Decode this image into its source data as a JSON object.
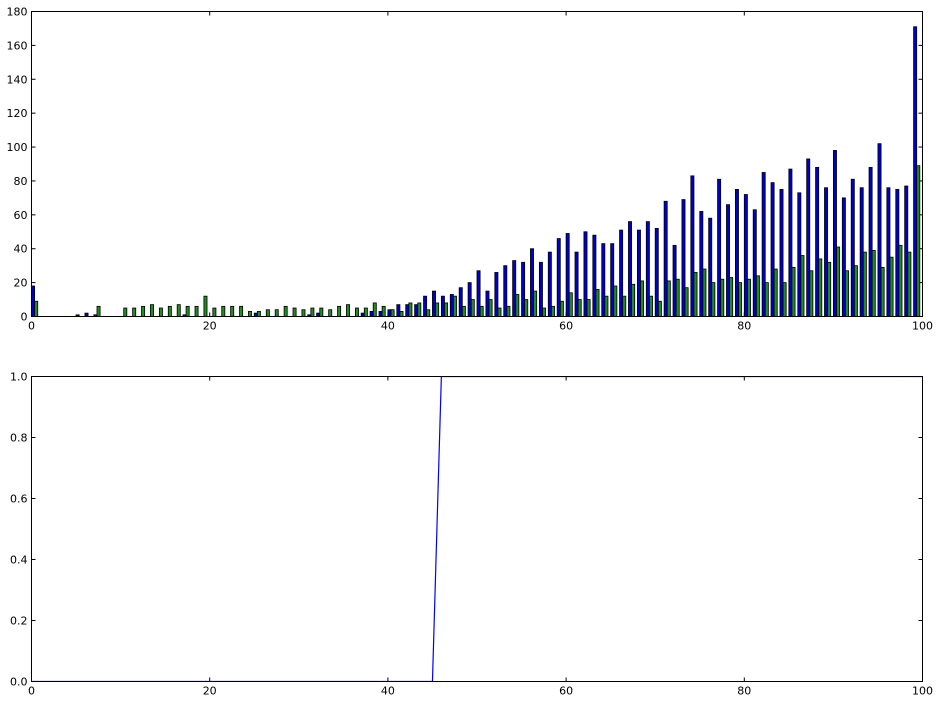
{
  "chart_data": [
    {
      "type": "bar",
      "title": "",
      "xlabel": "",
      "ylabel": "",
      "xlim": [
        0,
        100
      ],
      "ylim": [
        0,
        180
      ],
      "xticks": [
        "0",
        "20",
        "40",
        "60",
        "80",
        "100"
      ],
      "yticks": [
        "0",
        "20",
        "40",
        "60",
        "80",
        "100",
        "120",
        "140",
        "160",
        "180"
      ],
      "grid": false,
      "legend": "none",
      "colors": [
        "#0000cc",
        "#228b22"
      ],
      "series": [
        {
          "values": [
            18,
            0,
            0,
            0,
            0,
            1,
            2,
            1,
            0,
            0,
            0,
            0,
            0,
            0,
            0,
            0,
            0,
            1,
            0,
            0,
            0,
            0,
            0,
            0,
            0,
            2,
            0,
            0,
            0,
            0,
            0,
            1,
            2,
            0,
            0,
            0,
            0,
            2,
            3,
            3,
            4,
            7,
            7,
            7,
            12,
            15,
            12,
            13,
            17,
            20,
            27,
            15,
            26,
            30,
            33,
            32,
            40,
            32,
            38,
            46,
            49,
            38,
            50,
            48,
            43,
            43,
            51,
            56,
            51,
            56,
            52,
            68,
            42,
            69,
            83,
            62,
            58,
            81,
            66,
            75,
            72,
            63,
            85,
            79,
            75,
            87,
            73,
            93,
            88,
            76,
            98,
            70,
            81,
            76,
            88,
            102,
            76,
            75,
            77,
            171
          ]
        },
        {
          "values": [
            9,
            0,
            0,
            0,
            0,
            0,
            0,
            6,
            0,
            0,
            5,
            5,
            6,
            7,
            5,
            6,
            7,
            6,
            6,
            12,
            5,
            6,
            6,
            6,
            3,
            3,
            4,
            4,
            6,
            5,
            4,
            5,
            5,
            4,
            6,
            7,
            5,
            5,
            8,
            6,
            4,
            3,
            8,
            8,
            4,
            8,
            8,
            12,
            6,
            10,
            6,
            10,
            5,
            6,
            13,
            10,
            15,
            5,
            6,
            9,
            14,
            10,
            10,
            16,
            12,
            18,
            12,
            19,
            21,
            12,
            9,
            21,
            22,
            17,
            26,
            28,
            20,
            22,
            23,
            20,
            22,
            24,
            20,
            28,
            20,
            29,
            36,
            27,
            34,
            32,
            41,
            27,
            30,
            38,
            39,
            29,
            35,
            42,
            38,
            89
          ]
        }
      ]
    },
    {
      "type": "line",
      "title": "",
      "xlabel": "",
      "ylabel": "",
      "xlim": [
        0,
        100
      ],
      "ylim": [
        0,
        1
      ],
      "xticks": [
        "0",
        "20",
        "40",
        "60",
        "80",
        "100"
      ],
      "yticks": [
        "0.0",
        "0.2",
        "0.4",
        "0.6",
        "0.8",
        "1.0"
      ],
      "grid": false,
      "legend": "none",
      "colors": [
        "#0000ff"
      ],
      "series": [
        {
          "x": [
            0,
            45,
            46,
            100
          ],
          "y": [
            0,
            0,
            1,
            1
          ]
        }
      ]
    }
  ]
}
